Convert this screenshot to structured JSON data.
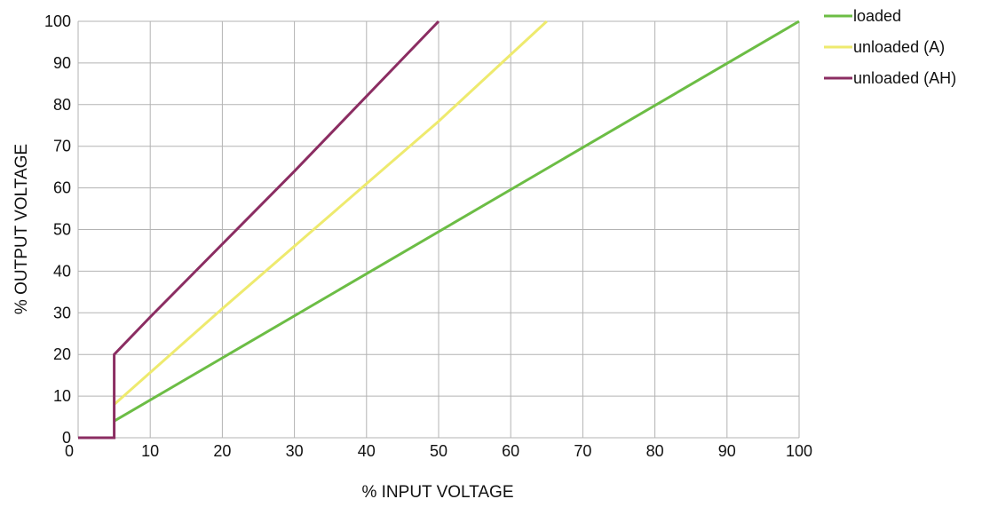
{
  "chart_data": {
    "type": "line",
    "title": "",
    "xlabel": "% INPUT VOLTAGE",
    "ylabel": "% OUTPUT VOLTAGE",
    "xlim": [
      0,
      100
    ],
    "ylim": [
      0,
      100
    ],
    "xticks": [
      0,
      10,
      20,
      30,
      40,
      50,
      60,
      70,
      80,
      90,
      100
    ],
    "yticks": [
      0,
      10,
      20,
      30,
      40,
      50,
      60,
      70,
      80,
      90,
      100
    ],
    "grid": true,
    "legend_position": "top-right",
    "series": [
      {
        "name": "loaded",
        "color": "#6cbd45",
        "points": [
          [
            5,
            4
          ],
          [
            100,
            100
          ]
        ]
      },
      {
        "name": "unloaded (A)",
        "color": "#eeea6e",
        "points": [
          [
            5,
            8
          ],
          [
            20,
            31
          ],
          [
            40,
            61
          ],
          [
            50,
            76
          ],
          [
            60,
            92
          ],
          [
            65,
            100
          ]
        ]
      },
      {
        "name": "unloaded (AH)",
        "color": "#8b2d62",
        "points": [
          [
            0,
            0
          ],
          [
            5,
            0
          ],
          [
            5,
            20
          ],
          [
            10,
            29
          ],
          [
            30,
            64
          ],
          [
            50,
            100
          ]
        ]
      }
    ]
  }
}
